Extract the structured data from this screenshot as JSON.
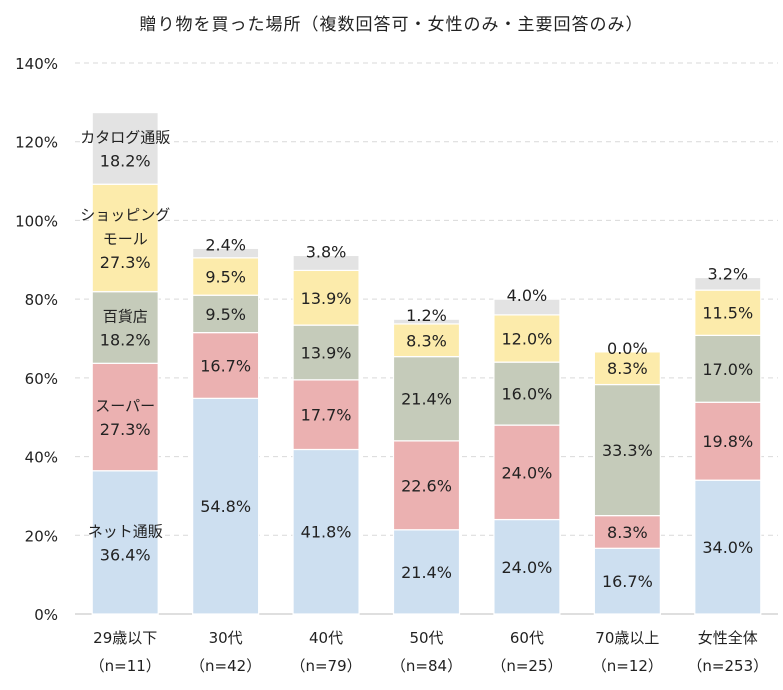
{
  "chart_data": {
    "type": "bar",
    "stacked": true,
    "title": "贈り物を買った場所（複数回答可・女性のみ・主要回答のみ）",
    "xlabel": "",
    "ylabel": "",
    "ylim": [
      0,
      140
    ],
    "yticks": [
      "0%",
      "20%",
      "40%",
      "60%",
      "80%",
      "100%",
      "120%",
      "140%"
    ],
    "grid": true,
    "legend": "none",
    "categories": [
      {
        "line1": "29歳以下",
        "line2": "（n=11）"
      },
      {
        "line1": "30代",
        "line2": "（n=42）"
      },
      {
        "line1": "40代",
        "line2": "（n=79）"
      },
      {
        "line1": "50代",
        "line2": "（n=84）"
      },
      {
        "line1": "60代",
        "line2": "（n=25）"
      },
      {
        "line1": "70歳以上",
        "line2": "（n=12）"
      },
      {
        "line1": "女性全体",
        "line2": "（n=253）"
      }
    ],
    "series": [
      {
        "name": "ネット通販",
        "inline_label": [
          "ネット通販"
        ],
        "color": "#cddff0",
        "values": [
          36.4,
          54.8,
          41.8,
          21.4,
          24.0,
          16.7,
          34.0
        ],
        "labels": [
          "36.4%",
          "54.8%",
          "41.8%",
          "21.4%",
          "24.0%",
          "16.7%",
          "34.0%"
        ]
      },
      {
        "name": "スーパー",
        "inline_label": [
          "スーパー"
        ],
        "color": "#ebb1b1",
        "values": [
          27.3,
          16.7,
          17.7,
          22.6,
          24.0,
          8.3,
          19.8
        ],
        "labels": [
          "27.3%",
          "16.7%",
          "17.7%",
          "22.6%",
          "24.0%",
          "8.3%",
          "19.8%"
        ]
      },
      {
        "name": "百貨店",
        "inline_label": [
          "百貨店"
        ],
        "color": "#c5cbba",
        "values": [
          18.2,
          9.5,
          13.9,
          21.4,
          16.0,
          33.3,
          17.0
        ],
        "labels": [
          "18.2%",
          "9.5%",
          "13.9%",
          "21.4%",
          "16.0%",
          "33.3%",
          "17.0%"
        ]
      },
      {
        "name": "ショッピングモール",
        "inline_label": [
          "ショッピング",
          "モール"
        ],
        "color": "#fcebab",
        "values": [
          27.3,
          9.5,
          13.9,
          8.3,
          12.0,
          8.3,
          11.5
        ],
        "labels": [
          "27.3%",
          "9.5%",
          "13.9%",
          "8.3%",
          "12.0%",
          "8.3%",
          "11.5%"
        ]
      },
      {
        "name": "カタログ通販",
        "inline_label": [
          "カタログ通販"
        ],
        "color": "#e3e3e3",
        "values": [
          18.2,
          2.4,
          3.8,
          1.2,
          4.0,
          0.0,
          3.2
        ],
        "labels": [
          "18.2%",
          "2.4%",
          "3.8%",
          "1.2%",
          "4.0%",
          "0.0%",
          "3.2%"
        ]
      }
    ]
  }
}
